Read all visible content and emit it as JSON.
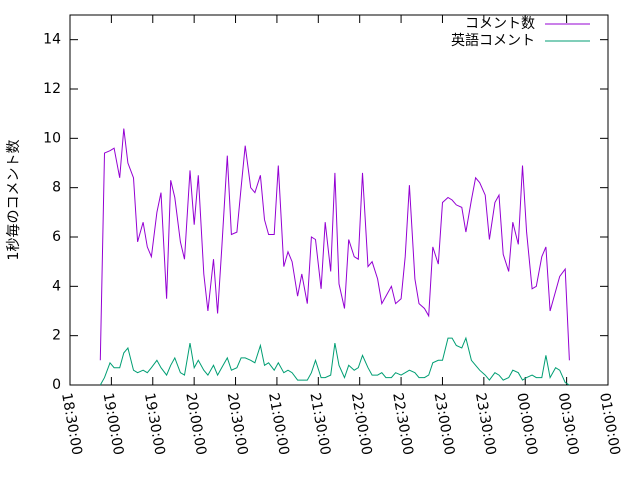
{
  "chart_data": {
    "type": "line",
    "ylabel": "1秒毎のコメント数",
    "x": [
      "18:52",
      "18:55",
      "18:59",
      "19:02",
      "19:06",
      "19:09",
      "19:12",
      "19:16",
      "19:19",
      "19:23",
      "19:26",
      "19:29",
      "19:33",
      "19:36",
      "19:40",
      "19:43",
      "19:46",
      "19:50",
      "19:53",
      "19:57",
      "20:00",
      "20:03",
      "20:07",
      "20:10",
      "20:14",
      "20:17",
      "20:20",
      "20:24",
      "20:27",
      "20:31",
      "20:34",
      "20:37",
      "20:41",
      "20:44",
      "20:48",
      "20:51",
      "20:54",
      "20:58",
      "21:01",
      "21:05",
      "21:08",
      "21:11",
      "21:15",
      "21:18",
      "21:22",
      "21:25",
      "21:28",
      "21:32",
      "21:35",
      "21:39",
      "21:42",
      "21:45",
      "21:49",
      "21:52",
      "21:56",
      "21:59",
      "22:02",
      "22:06",
      "22:09",
      "22:13",
      "22:16",
      "22:19",
      "22:23",
      "22:26",
      "22:30",
      "22:33",
      "22:36",
      "22:40",
      "22:43",
      "22:47",
      "22:50",
      "22:53",
      "22:57",
      "23:00",
      "23:04",
      "23:07",
      "23:10",
      "23:14",
      "23:17",
      "23:21",
      "23:24",
      "23:27",
      "23:31",
      "23:34",
      "23:38",
      "23:41",
      "23:44",
      "23:48",
      "23:51",
      "23:55",
      "23:58",
      "00:01",
      "00:05",
      "00:08",
      "00:12",
      "00:15",
      "00:18",
      "00:22",
      "00:25",
      "00:29",
      "00:32"
    ],
    "series": [
      {
        "name": "コメント数",
        "color": "#9400d3",
        "values": [
          1,
          9.4,
          9.5,
          9.6,
          8.4,
          10.4,
          9,
          8.4,
          5.8,
          6.6,
          5.6,
          5.2,
          7,
          7.8,
          3.5,
          8.3,
          7.6,
          5.8,
          5.1,
          8.7,
          6.5,
          8.5,
          4.5,
          3,
          5.1,
          2.9,
          5.5,
          9.3,
          6.1,
          6.2,
          8,
          9.7,
          8,
          7.8,
          8.5,
          6.7,
          6.1,
          6.1,
          8.9,
          4.8,
          5.4,
          5,
          3.6,
          4.5,
          3.3,
          6,
          5.9,
          3.9,
          6.6,
          4.6,
          8.6,
          4.1,
          3.1,
          5.9,
          5.2,
          5.1,
          8.6,
          4.8,
          5,
          4.3,
          3.3,
          3.6,
          4,
          3.3,
          3.5,
          5.2,
          8.1,
          4.3,
          3.3,
          3.1,
          2.8,
          5.6,
          4.9,
          7.4,
          7.6,
          7.5,
          7.3,
          7.2,
          6.2,
          7.5,
          8.4,
          8.2,
          7.7,
          5.9,
          7.4,
          7.7,
          5.3,
          4.6,
          6.6,
          5.7,
          8.9,
          6.2,
          3.9,
          4,
          5.2,
          5.6,
          3,
          3.8,
          4.4,
          4.7,
          1
        ]
      },
      {
        "name": "英語コメント",
        "color": "#009e73",
        "values": [
          0,
          0.3,
          0.9,
          0.7,
          0.7,
          1.3,
          1.5,
          0.6,
          0.5,
          0.6,
          0.5,
          0.7,
          1.0,
          0.7,
          0.4,
          0.8,
          1.1,
          0.5,
          0.4,
          1.7,
          0.7,
          1.0,
          0.6,
          0.4,
          0.8,
          0.4,
          0.7,
          1.1,
          0.6,
          0.7,
          1.1,
          1.1,
          1.0,
          0.9,
          1.6,
          0.8,
          0.9,
          0.6,
          0.9,
          0.5,
          0.6,
          0.5,
          0.2,
          0.2,
          0.2,
          0.5,
          1.0,
          0.3,
          0.3,
          0.4,
          1.7,
          0.8,
          0.3,
          0.8,
          0.6,
          0.7,
          1.2,
          0.7,
          0.4,
          0.4,
          0.5,
          0.3,
          0.3,
          0.5,
          0.4,
          0.5,
          0.6,
          0.5,
          0.3,
          0.3,
          0.4,
          0.9,
          1.0,
          1.0,
          1.9,
          1.9,
          1.6,
          1.5,
          1.9,
          1.0,
          0.8,
          0.6,
          0.4,
          0.2,
          0.5,
          0.4,
          0.2,
          0.3,
          0.6,
          0.5,
          0.2,
          0.3,
          0.4,
          0.3,
          0.3,
          1.2,
          0.3,
          0.7,
          0.6,
          0.1,
          0
        ]
      }
    ],
    "xlim": [
      "18:30:00",
      "01:00:00"
    ],
    "xticks": [
      "18:30:00",
      "19:00:00",
      "19:30:00",
      "20:00:00",
      "20:30:00",
      "21:00:00",
      "21:30:00",
      "22:00:00",
      "22:30:00",
      "23:00:00",
      "23:30:00",
      "00:00:00",
      "00:30:00",
      "01:00:00"
    ],
    "ylim": [
      0,
      15
    ],
    "yticks": [
      0,
      2,
      4,
      6,
      8,
      10,
      12,
      14
    ],
    "legend": "upper right"
  }
}
